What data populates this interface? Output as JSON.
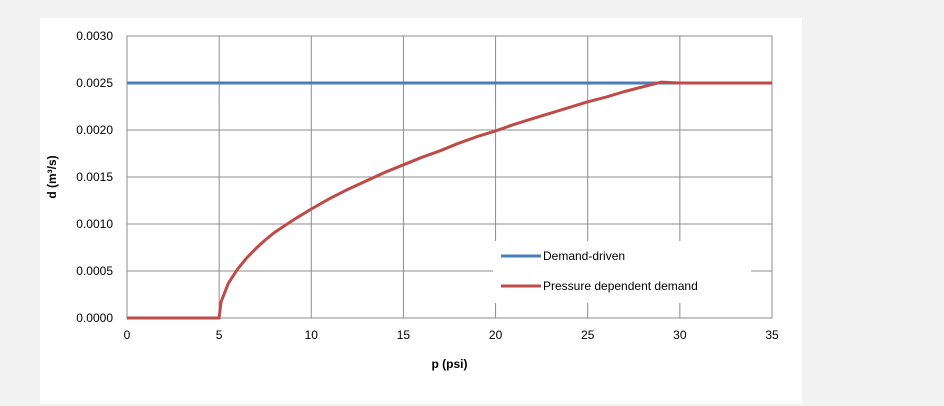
{
  "chart_data": {
    "type": "line",
    "xlabel": "p (psi)",
    "ylabel": "d (m³/s)",
    "xlim": [
      0,
      35
    ],
    "ylim": [
      0,
      0.003
    ],
    "xticks": [
      "0",
      "5",
      "10",
      "15",
      "20",
      "25",
      "30",
      "35"
    ],
    "yticks": [
      "0.0000",
      "0.0005",
      "0.0010",
      "0.0015",
      "0.0020",
      "0.0025",
      "0.0030"
    ],
    "grid": true,
    "legend_position": "inside-right",
    "series": [
      {
        "name": "Demand-driven",
        "color": "#4a7ebb",
        "x": [
          0,
          35
        ],
        "y": [
          0.0025,
          0.0025
        ]
      },
      {
        "name": "Pressure dependent demand",
        "color": "#be4b48",
        "x": [
          0,
          5,
          5.1,
          5.5,
          6,
          6.5,
          7,
          7.5,
          8,
          9,
          10,
          11,
          12,
          13,
          14,
          15,
          16,
          17,
          18,
          19,
          20,
          21,
          22,
          23,
          24,
          25,
          26,
          27,
          28,
          29,
          30,
          35
        ],
        "y": [
          0,
          0,
          0.00017,
          0.00037,
          0.00052,
          0.00064,
          0.00074,
          0.00083,
          0.00091,
          0.00104,
          0.00116,
          0.00127,
          0.00137,
          0.00146,
          0.00155,
          0.00163,
          0.00171,
          0.00178,
          0.00186,
          0.00193,
          0.00199,
          0.00206,
          0.00212,
          0.00218,
          0.00224,
          0.0023,
          0.00235,
          0.00241,
          0.00246,
          0.00251,
          0.0025,
          0.0025
        ]
      }
    ]
  }
}
